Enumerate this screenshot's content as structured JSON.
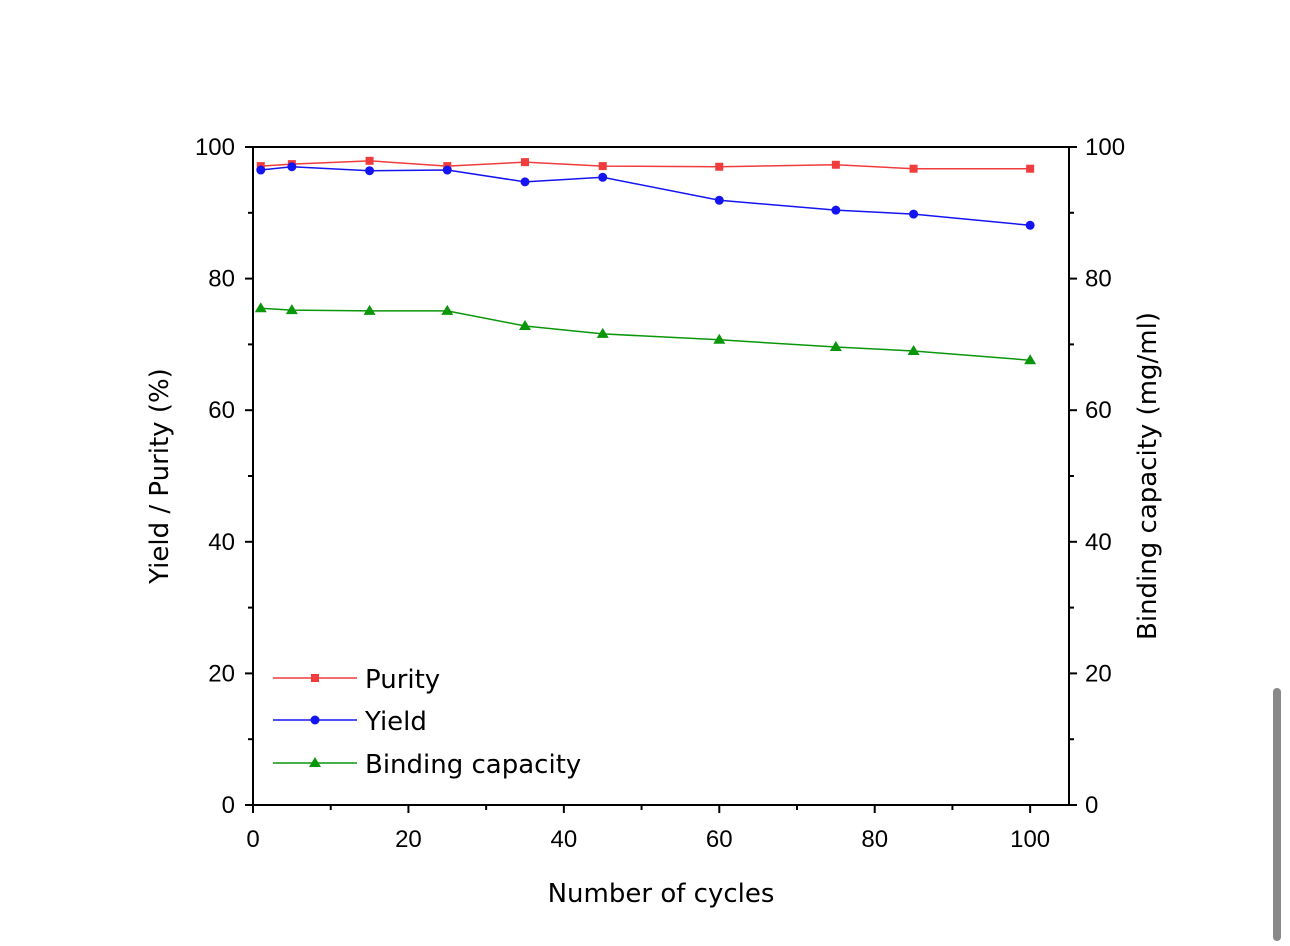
{
  "chart_data": {
    "type": "line",
    "xlabel": "Number of cycles",
    "ylabel": "Yield / Purity (%)",
    "y2label": "Binding capacity (mg/ml)",
    "x": [
      1,
      5,
      15,
      25,
      35,
      45,
      60,
      75,
      85,
      100
    ],
    "series": [
      {
        "name": "Purity",
        "color": "#f03c3c",
        "marker": "square",
        "values": [
          97.1,
          97.4,
          97.9,
          97.1,
          97.7,
          97.1,
          97.0,
          97.3,
          96.7,
          96.7
        ]
      },
      {
        "name": "Yield",
        "color": "#1414f0",
        "marker": "circle",
        "values": [
          96.5,
          97.0,
          96.4,
          96.5,
          94.7,
          95.4,
          91.9,
          90.4,
          89.8,
          88.1
        ]
      },
      {
        "name": "Binding capacity",
        "color": "#0a960a",
        "marker": "triangle",
        "axis": "y2",
        "values": [
          75.5,
          75.2,
          75.1,
          75.1,
          72.8,
          71.6,
          70.7,
          69.6,
          69.0,
          67.6
        ]
      }
    ],
    "xlim": [
      0,
      105
    ],
    "xticks": [
      0,
      20,
      40,
      60,
      80,
      100
    ],
    "xminorticks": [
      10,
      30,
      50,
      70,
      90
    ],
    "ylim": [
      0,
      100
    ],
    "yticks": [
      0,
      20,
      40,
      60,
      80,
      100
    ],
    "yminorticks": [
      10,
      30,
      50,
      70,
      90
    ],
    "y2lim": [
      0,
      100
    ],
    "y2ticks": [
      0,
      20,
      40,
      60,
      80,
      100
    ],
    "y2minorticks": [
      10,
      30,
      50,
      70,
      90
    ],
    "grid": false,
    "legend": "lower left"
  }
}
